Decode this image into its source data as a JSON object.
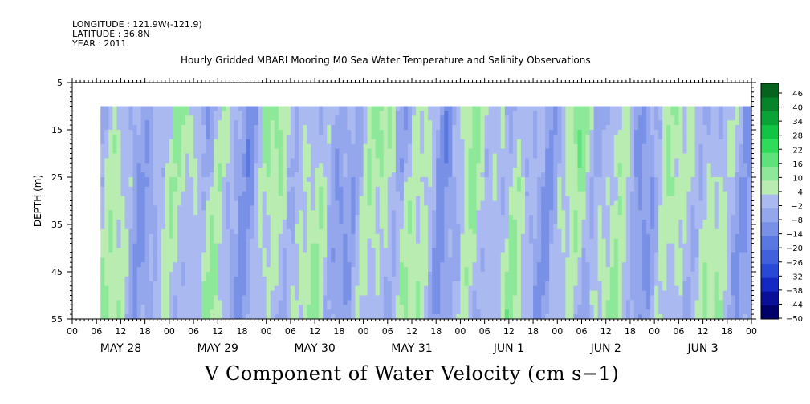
{
  "header": {
    "longitude": "LONGITUDE : 121.9W(-121.9)",
    "latitude": "LATITUDE : 36.8N",
    "year": "YEAR : 2011"
  },
  "chart_data": {
    "type": "heatmap",
    "title": "Hourly Gridded MBARI Mooring M0 Sea Water Temperature and Salinity Observations",
    "bottom_title": "V Component of Water Velocity (cm s−1)",
    "ylabel": "DEPTH (m)",
    "ylim": [
      5,
      55
    ],
    "y_inverted": true,
    "y_ticks": [
      5,
      15,
      25,
      35,
      45,
      55
    ],
    "x_range_hours": [
      0,
      168
    ],
    "x_hour_labels": [
      "00",
      "06",
      "12",
      "18",
      "00",
      "06",
      "12",
      "18",
      "00",
      "06",
      "12",
      "18",
      "00",
      "06",
      "12",
      "18",
      "00",
      "06",
      "12",
      "18",
      "00",
      "06",
      "12",
      "18",
      "00",
      "06",
      "12",
      "18",
      "00"
    ],
    "day_labels": [
      "MAY 28",
      "MAY 29",
      "MAY 30",
      "MAY 31",
      "JUN  1",
      "JUN  2",
      "JUN  3"
    ],
    "data_extent": {
      "start_hour": 7,
      "end_hour": 168,
      "min_depth": 10,
      "max_depth": 55
    },
    "colorbar": {
      "labels": [
        "46",
        "40",
        "34",
        "28",
        "22",
        "16",
        "10",
        "4",
        "−2",
        "−8",
        "−14",
        "−20",
        "−26",
        "−32",
        "−38",
        "−44",
        "−50"
      ],
      "min": -50,
      "max": 49,
      "colors_low_to_high": [
        "#00006a",
        "#0a0f9a",
        "#1428c4",
        "#2848d6",
        "#4060dc",
        "#5a78e2",
        "#7890e6",
        "#94a6ec",
        "#aabaf0",
        "#b8ecb0",
        "#8ee89a",
        "#5ee27a",
        "#2edc5a",
        "#12c444",
        "#0aa436",
        "#06842a",
        "#04641e"
      ]
    }
  }
}
